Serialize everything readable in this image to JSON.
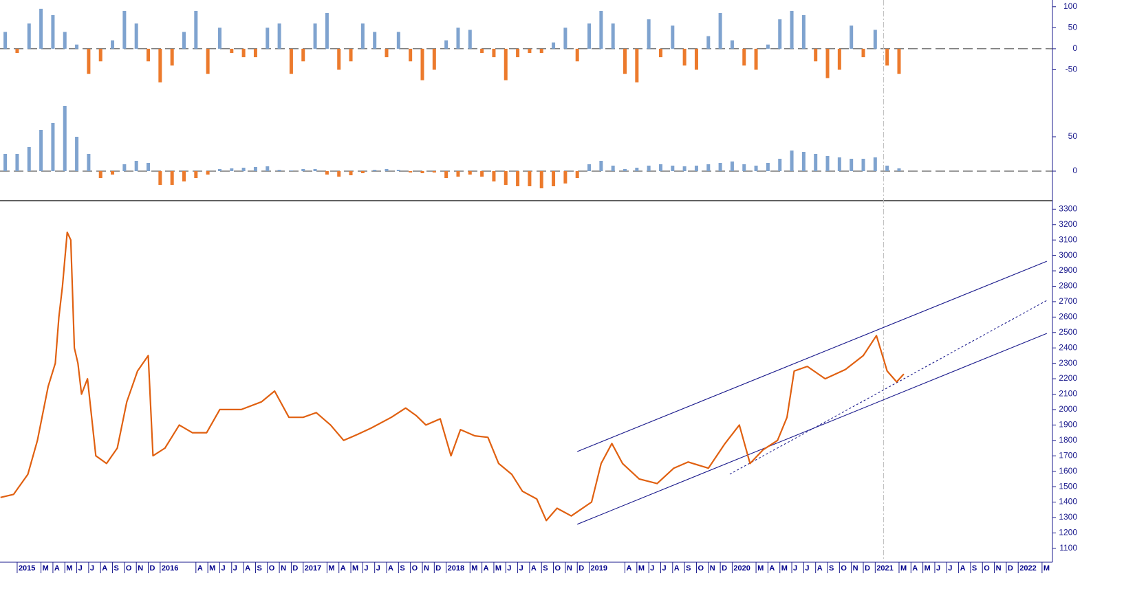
{
  "chart_data": [
    {
      "type": "bar",
      "color_positive": "#7fa3cf",
      "color_negative": "#ec7a2c",
      "zero_line": true,
      "ylim": [
        -113,
        116
      ],
      "yticks": [
        100,
        50,
        0,
        -50
      ],
      "x": [
        -1,
        0,
        1,
        2,
        3,
        4,
        5,
        6,
        7,
        8,
        9,
        10,
        11,
        12,
        13,
        14,
        15,
        16,
        17,
        18,
        19,
        20,
        21,
        22,
        23,
        24,
        25,
        26,
        27,
        28,
        29,
        30,
        31,
        32,
        33,
        34,
        35,
        36,
        37,
        38,
        39,
        40,
        41,
        42,
        43,
        44,
        45,
        46,
        47,
        48,
        49,
        50,
        51,
        52,
        53,
        54,
        55,
        56,
        57,
        58,
        59,
        60,
        61,
        62,
        63,
        64,
        65,
        66,
        67,
        68,
        69,
        70,
        71,
        72,
        73,
        74
      ],
      "values": [
        40,
        -10,
        60,
        95,
        80,
        40,
        10,
        -60,
        -30,
        20,
        90,
        60,
        -30,
        -80,
        -40,
        40,
        90,
        -60,
        50,
        -10,
        -20,
        -20,
        50,
        60,
        -60,
        -30,
        60,
        85,
        -50,
        -30,
        60,
        40,
        -20,
        40,
        -30,
        -75,
        -50,
        20,
        50,
        45,
        -10,
        -20,
        -75,
        -20,
        -10,
        -10,
        15,
        50,
        -30,
        60,
        90,
        60,
        -60,
        -80,
        70,
        -20,
        55,
        -40,
        -50,
        30,
        85,
        20,
        -40,
        -50,
        10,
        70,
        90,
        80,
        -30,
        -70,
        -50,
        55,
        -20,
        45,
        -40,
        -60
      ],
      "xlim": [
        -1.44,
        86.7
      ]
    },
    {
      "type": "bar",
      "color_positive": "#7fa3cf",
      "color_negative": "#ec7a2c",
      "zero_line": true,
      "ylim": [
        -43,
        109
      ],
      "yticks": [
        50,
        0
      ],
      "x": [
        -1,
        0,
        1,
        2,
        3,
        4,
        5,
        6,
        7,
        8,
        9,
        10,
        11,
        12,
        13,
        14,
        15,
        16,
        17,
        18,
        19,
        20,
        21,
        22,
        23,
        24,
        25,
        26,
        27,
        28,
        29,
        30,
        31,
        32,
        33,
        34,
        35,
        36,
        37,
        38,
        39,
        40,
        41,
        42,
        43,
        44,
        45,
        46,
        47,
        48,
        49,
        50,
        51,
        52,
        53,
        54,
        55,
        56,
        57,
        58,
        59,
        60,
        61,
        62,
        63,
        64,
        65,
        66,
        67,
        68,
        69,
        70,
        71,
        72,
        73,
        74
      ],
      "values": [
        25,
        25,
        35,
        60,
        70,
        95,
        50,
        25,
        -10,
        -5,
        10,
        15,
        12,
        -20,
        -20,
        -15,
        -10,
        -5,
        3,
        4,
        5,
        6,
        7,
        2,
        1,
        3,
        3,
        -5,
        -8,
        -6,
        -3,
        2,
        3,
        2,
        -2,
        -3,
        -2,
        -10,
        -8,
        -5,
        -8,
        -15,
        -20,
        -22,
        -22,
        -25,
        -22,
        -18,
        -10,
        10,
        15,
        8,
        3,
        5,
        8,
        10,
        8,
        7,
        8,
        10,
        12,
        14,
        10,
        8,
        12,
        18,
        30,
        28,
        25,
        22,
        20,
        18,
        18,
        20,
        8,
        4
      ],
      "xlim": [
        -1.44,
        86.7
      ]
    },
    {
      "type": "line",
      "color": "#e06010",
      "line_color": "#1a1a8c",
      "vline_color": "#c0c0c0",
      "ylim": [
        1010,
        3355
      ],
      "yticks": [
        1100,
        1200,
        1300,
        1400,
        1500,
        1600,
        1700,
        1800,
        1900,
        2000,
        2100,
        2200,
        2300,
        2400,
        2500,
        2600,
        2700,
        2800,
        2900,
        3000,
        3100,
        3200,
        3300
      ],
      "xlim": [
        -1.44,
        86.7
      ],
      "x": [
        -1.4,
        -0.3,
        0.9,
        1.7,
        2.6,
        3.2,
        3.5,
        3.8,
        4.2,
        4.5,
        4.8,
        5.1,
        5.4,
        5.9,
        6.6,
        7.5,
        8.4,
        9.2,
        10.1,
        11,
        11.4,
        12.4,
        13.6,
        14.7,
        15.9,
        17,
        18.8,
        20.5,
        21.6,
        22.8,
        24,
        25.1,
        26.3,
        27.4,
        28.6,
        29.7,
        31.4,
        32.6,
        33.5,
        34.3,
        35.5,
        36.4,
        37.2,
        38.4,
        39.5,
        40.4,
        41.5,
        42.4,
        43.6,
        44.4,
        45.3,
        46.5,
        48.2,
        49,
        49.9,
        50.8,
        52.2,
        53.7,
        55.1,
        56.3,
        58,
        59.4,
        60.6,
        61.5,
        62.6,
        63.8,
        64.6,
        65.2,
        66.3,
        67.8,
        69.5,
        71,
        72.1,
        73,
        73.8,
        74.4
      ],
      "values": [
        1430,
        1450,
        1580,
        1800,
        2150,
        2300,
        2600,
        2800,
        3150,
        3100,
        2400,
        2300,
        2100,
        2200,
        1700,
        1650,
        1750,
        2050,
        2250,
        2350,
        1700,
        1750,
        1900,
        1850,
        1850,
        2000,
        2000,
        2050,
        2120,
        1950,
        1950,
        1980,
        1900,
        1800,
        1840,
        1880,
        1950,
        2010,
        1960,
        1900,
        1940,
        1700,
        1870,
        1830,
        1820,
        1650,
        1580,
        1470,
        1420,
        1280,
        1360,
        1310,
        1400,
        1650,
        1780,
        1650,
        1550,
        1520,
        1620,
        1660,
        1620,
        1780,
        1900,
        1650,
        1740,
        1800,
        1950,
        2250,
        2280,
        2200,
        2260,
        2350,
        2480,
        2250,
        2180,
        2230
      ],
      "trendlines": [
        {
          "x": [
            47,
            86.4
          ],
          "values": [
            1728,
            2962
          ],
          "style": "solid"
        },
        {
          "x": [
            47,
            86.4
          ],
          "values": [
            1256,
            2494
          ],
          "style": "solid"
        },
        {
          "x": [
            59.8,
            86.4
          ],
          "values": [
            1581,
            2708
          ],
          "style": "dotted"
        }
      ],
      "vline": 72.7,
      "xticks": [
        {
          "value": 0,
          "label": "2015"
        },
        {
          "value": 2,
          "label": "M"
        },
        {
          "value": 3,
          "label": "A"
        },
        {
          "value": 4,
          "label": "M"
        },
        {
          "value": 5,
          "label": "J"
        },
        {
          "value": 6,
          "label": "J"
        },
        {
          "value": 7,
          "label": "A"
        },
        {
          "value": 8,
          "label": "S"
        },
        {
          "value": 9,
          "label": "O"
        },
        {
          "value": 10,
          "label": "N"
        },
        {
          "value": 11,
          "label": "D"
        },
        {
          "value": 12,
          "label": "2016"
        },
        {
          "value": 15,
          "label": "A"
        },
        {
          "value": 16,
          "label": "M"
        },
        {
          "value": 17,
          "label": "J"
        },
        {
          "value": 18,
          "label": "J"
        },
        {
          "value": 19,
          "label": "A"
        },
        {
          "value": 20,
          "label": "S"
        },
        {
          "value": 21,
          "label": "O"
        },
        {
          "value": 22,
          "label": "N"
        },
        {
          "value": 23,
          "label": "D"
        },
        {
          "value": 24,
          "label": "2017"
        },
        {
          "value": 26,
          "label": "M"
        },
        {
          "value": 27,
          "label": "A"
        },
        {
          "value": 28,
          "label": "M"
        },
        {
          "value": 29,
          "label": "J"
        },
        {
          "value": 30,
          "label": "J"
        },
        {
          "value": 31,
          "label": "A"
        },
        {
          "value": 32,
          "label": "S"
        },
        {
          "value": 33,
          "label": "O"
        },
        {
          "value": 34,
          "label": "N"
        },
        {
          "value": 35,
          "label": "D"
        },
        {
          "value": 36,
          "label": "2018"
        },
        {
          "value": 38,
          "label": "M"
        },
        {
          "value": 39,
          "label": "A"
        },
        {
          "value": 40,
          "label": "M"
        },
        {
          "value": 41,
          "label": "J"
        },
        {
          "value": 42,
          "label": "J"
        },
        {
          "value": 43,
          "label": "A"
        },
        {
          "value": 44,
          "label": "S"
        },
        {
          "value": 45,
          "label": "O"
        },
        {
          "value": 46,
          "label": "N"
        },
        {
          "value": 47,
          "label": "D"
        },
        {
          "value": 48,
          "label": "2019"
        },
        {
          "value": 51,
          "label": "A"
        },
        {
          "value": 52,
          "label": "M"
        },
        {
          "value": 53,
          "label": "J"
        },
        {
          "value": 54,
          "label": "J"
        },
        {
          "value": 55,
          "label": "A"
        },
        {
          "value": 56,
          "label": "S"
        },
        {
          "value": 57,
          "label": "O"
        },
        {
          "value": 58,
          "label": "N"
        },
        {
          "value": 59,
          "label": "D"
        },
        {
          "value": 60,
          "label": "2020"
        },
        {
          "value": 62,
          "label": "M"
        },
        {
          "value": 63,
          "label": "A"
        },
        {
          "value": 64,
          "label": "M"
        },
        {
          "value": 65,
          "label": "J"
        },
        {
          "value": 66,
          "label": "J"
        },
        {
          "value": 67,
          "label": "A"
        },
        {
          "value": 68,
          "label": "S"
        },
        {
          "value": 69,
          "label": "O"
        },
        {
          "value": 70,
          "label": "N"
        },
        {
          "value": 71,
          "label": "D"
        },
        {
          "value": 72,
          "label": "2021"
        },
        {
          "value": 74,
          "label": "M"
        },
        {
          "value": 75,
          "label": "A"
        },
        {
          "value": 76,
          "label": "M"
        },
        {
          "value": 77,
          "label": "J"
        },
        {
          "value": 78,
          "label": "J"
        },
        {
          "value": 79,
          "label": "A"
        },
        {
          "value": 80,
          "label": "S"
        },
        {
          "value": 81,
          "label": "O"
        },
        {
          "value": 82,
          "label": "N"
        },
        {
          "value": 83,
          "label": "D"
        },
        {
          "value": 84,
          "label": "2022"
        },
        {
          "value": 86,
          "label": "M"
        }
      ]
    }
  ]
}
